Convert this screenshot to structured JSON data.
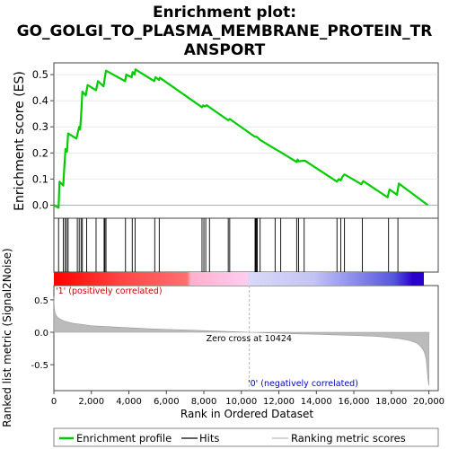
{
  "chart_data": {
    "type": "line",
    "title": "Enrichment plot: GO_GOLGI_TO_PLASMA_MEMBRANE_PROTEIN_TRANSPORT",
    "title_lines": [
      "Enrichment plot:",
      "GO_GOLGI_TO_PLASMA_MEMBRANE_PROTEIN_TR",
      "ANSPORT"
    ],
    "xlabel": "Rank in Ordered Dataset",
    "top_panel": {
      "ylabel": "Enrichment score (ES)",
      "ylim": [
        -0.05,
        0.545
      ],
      "yticks": [
        0.0,
        0.1,
        0.2,
        0.3,
        0.4,
        0.5
      ],
      "ytick_labels": [
        "0.0",
        "0.1",
        "0.2",
        "0.3",
        "0.4",
        "0.5"
      ],
      "series": [
        {
          "name": "Enrichment profile",
          "color": "#00cc00",
          "x": [
            0,
            250,
            300,
            500,
            560,
            620,
            700,
            760,
            1200,
            1350,
            1400,
            1450,
            1520,
            1700,
            1800,
            2250,
            2350,
            2650,
            2720,
            2780,
            3800,
            3860,
            4150,
            4200,
            4300,
            4350,
            5350,
            5420,
            5600,
            5650,
            7900,
            7960,
            8050,
            8150,
            8300,
            9300,
            9380,
            10700,
            10750,
            10800,
            10850,
            11000,
            11800,
            12100,
            12950,
            13000,
            13050,
            13300,
            13400,
            15100,
            15200,
            15300,
            15400,
            15500,
            16400,
            16500,
            17800,
            17900,
            18300,
            18400,
            19950
          ],
          "y": [
            0.0,
            -0.01,
            0.09,
            0.075,
            0.15,
            0.215,
            0.205,
            0.275,
            0.255,
            0.3,
            0.29,
            0.34,
            0.435,
            0.42,
            0.46,
            0.44,
            0.475,
            0.455,
            0.49,
            0.515,
            0.475,
            0.5,
            0.49,
            0.51,
            0.5,
            0.52,
            0.475,
            0.49,
            0.48,
            0.488,
            0.375,
            0.382,
            0.378,
            0.383,
            0.375,
            0.325,
            0.33,
            0.263,
            0.262,
            0.262,
            0.26,
            0.25,
            0.215,
            0.203,
            0.165,
            0.175,
            0.168,
            0.17,
            0.17,
            0.09,
            0.1,
            0.095,
            0.11,
            0.118,
            0.08,
            0.092,
            0.03,
            0.06,
            0.04,
            0.083,
            0.0
          ]
        }
      ]
    },
    "hits": [
      250,
      500,
      600,
      680,
      760,
      1250,
      1350,
      1450,
      1520,
      1750,
      2250,
      2680,
      2720,
      2780,
      3820,
      4180,
      4330,
      5380,
      5620,
      7900,
      8000,
      8100,
      8300,
      9300,
      9380,
      10730,
      10770,
      10810,
      10850,
      11000,
      11800,
      12100,
      12950,
      13050,
      13350,
      15100,
      15300,
      15500,
      16450,
      17850,
      18350
    ],
    "bottom_panel": {
      "ylabel": "Ranked list metric (Signal2Noise)",
      "ylim": [
        -0.9,
        0.72
      ],
      "yticks": [
        0.5,
        0.0,
        -0.5
      ],
      "ytick_labels": [
        "0.5",
        "0.0",
        "-0.5"
      ],
      "metric_curve": {
        "x": [
          0,
          20,
          60,
          120,
          200,
          350,
          500,
          700,
          1000,
          1500,
          2000,
          3000,
          4000,
          5000,
          6000,
          7000,
          8000,
          9000,
          10000,
          10424,
          11000,
          12000,
          13000,
          14000,
          15000,
          16000,
          17000,
          17500,
          18000,
          18500,
          19000,
          19300,
          19500,
          19650,
          19750,
          19850,
          19900,
          19950,
          20000
        ],
        "y": [
          0.55,
          0.38,
          0.3,
          0.26,
          0.23,
          0.2,
          0.18,
          0.16,
          0.14,
          0.12,
          0.1,
          0.085,
          0.07,
          0.055,
          0.045,
          0.035,
          0.025,
          0.015,
          0.005,
          0.0,
          -0.005,
          -0.015,
          -0.025,
          -0.03,
          -0.04,
          -0.05,
          -0.06,
          -0.07,
          -0.085,
          -0.1,
          -0.13,
          -0.16,
          -0.2,
          -0.25,
          -0.3,
          -0.4,
          -0.55,
          -0.72,
          -0.82
        ]
      },
      "zero_cross_label": "Zero cross at 10424",
      "zero_cross": 10424,
      "positive_label": "'1' (positively correlated)",
      "negative_label": "'0' (negatively correlated)"
    },
    "xlim": [
      0,
      20500
    ],
    "xticks": [
      0,
      2000,
      4000,
      6000,
      8000,
      10000,
      12000,
      14000,
      16000,
      18000,
      20000
    ],
    "xtick_labels": [
      "0",
      "2,000",
      "4,000",
      "6,000",
      "8,000",
      "10,000",
      "12,000",
      "14,000",
      "16,000",
      "18,000",
      "20,000"
    ],
    "legend": {
      "placement": "bottom",
      "items": [
        {
          "label": "Enrichment profile",
          "color": "#00cc00",
          "style": "line"
        },
        {
          "label": "Hits",
          "color": "#000000",
          "style": "line"
        },
        {
          "label": "Ranking metric scores",
          "color": "#bbbbbb",
          "style": "line"
        }
      ]
    },
    "colors": {
      "profile": "#00cc00",
      "positive_text": "#cc0000",
      "negative_text": "#0000cc",
      "metric_fill": "#bbbbbb",
      "zero_line": "#cccccc"
    }
  }
}
